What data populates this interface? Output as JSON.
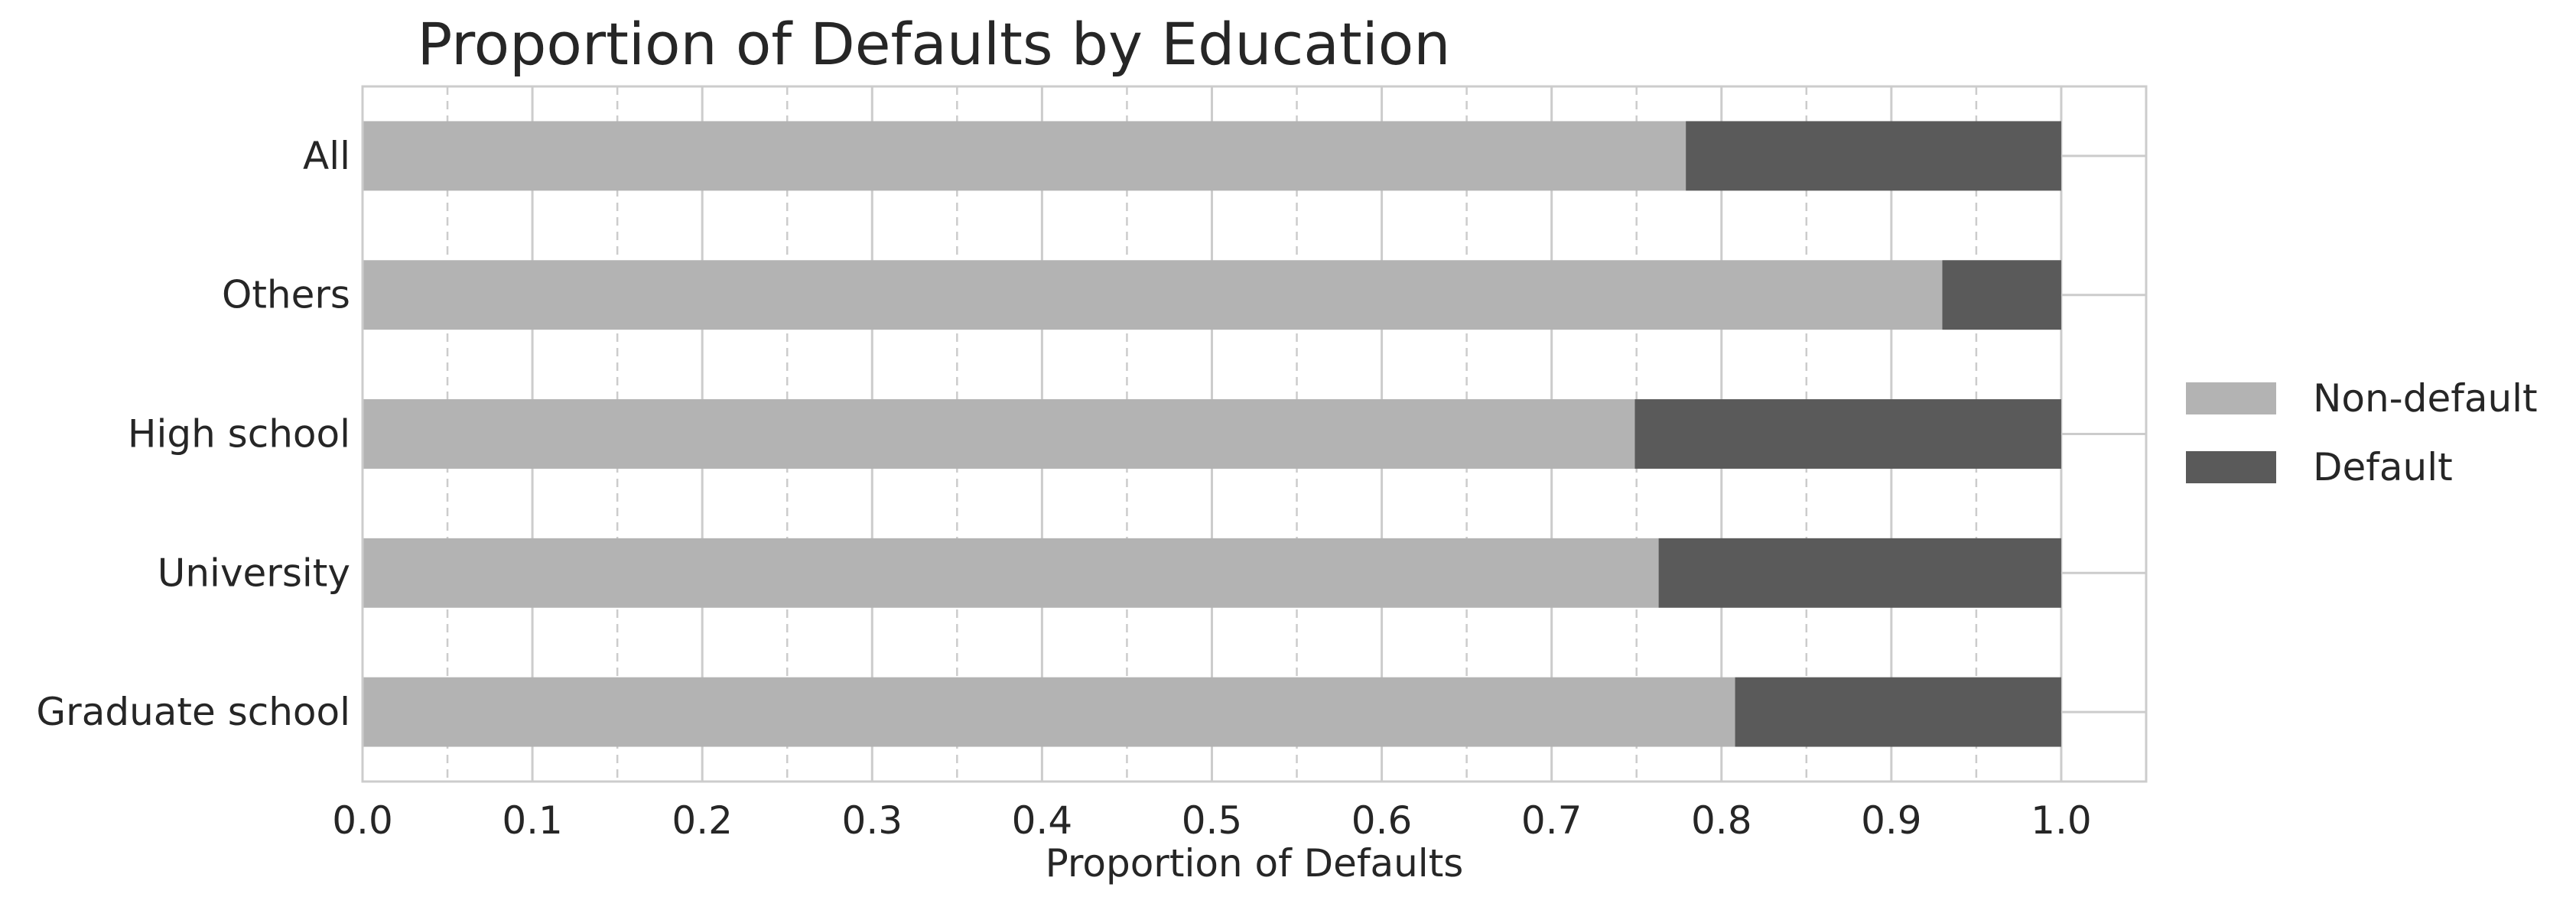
{
  "chart_data": {
    "type": "bar",
    "orientation": "horizontal",
    "stacked": true,
    "title": "Proportion of Defaults by Education",
    "xlabel": "Proportion of Defaults",
    "ylabel": "",
    "xlim": [
      0.0,
      1.05
    ],
    "xticks": [
      0.0,
      0.1,
      0.2,
      0.3,
      0.4,
      0.5,
      0.6,
      0.7,
      0.8,
      0.9,
      1.0
    ],
    "xtick_labels": [
      "0.0",
      "0.1",
      "0.2",
      "0.3",
      "0.4",
      "0.5",
      "0.6",
      "0.7",
      "0.8",
      "0.9",
      "1.0"
    ],
    "categories": [
      "All",
      "Others",
      "High school",
      "University",
      "Graduate school"
    ],
    "series": [
      {
        "name": "Non-default",
        "color": "#b3b3b3",
        "values": [
          0.779,
          0.93,
          0.749,
          0.763,
          0.808
        ]
      },
      {
        "name": "Default",
        "color": "#5a5a5a",
        "values": [
          0.221,
          0.07,
          0.251,
          0.237,
          0.192
        ]
      }
    ],
    "grid": {
      "major": "solid",
      "minor": "dashed",
      "axis": "x"
    },
    "legend": {
      "placement": "outside-right"
    }
  }
}
